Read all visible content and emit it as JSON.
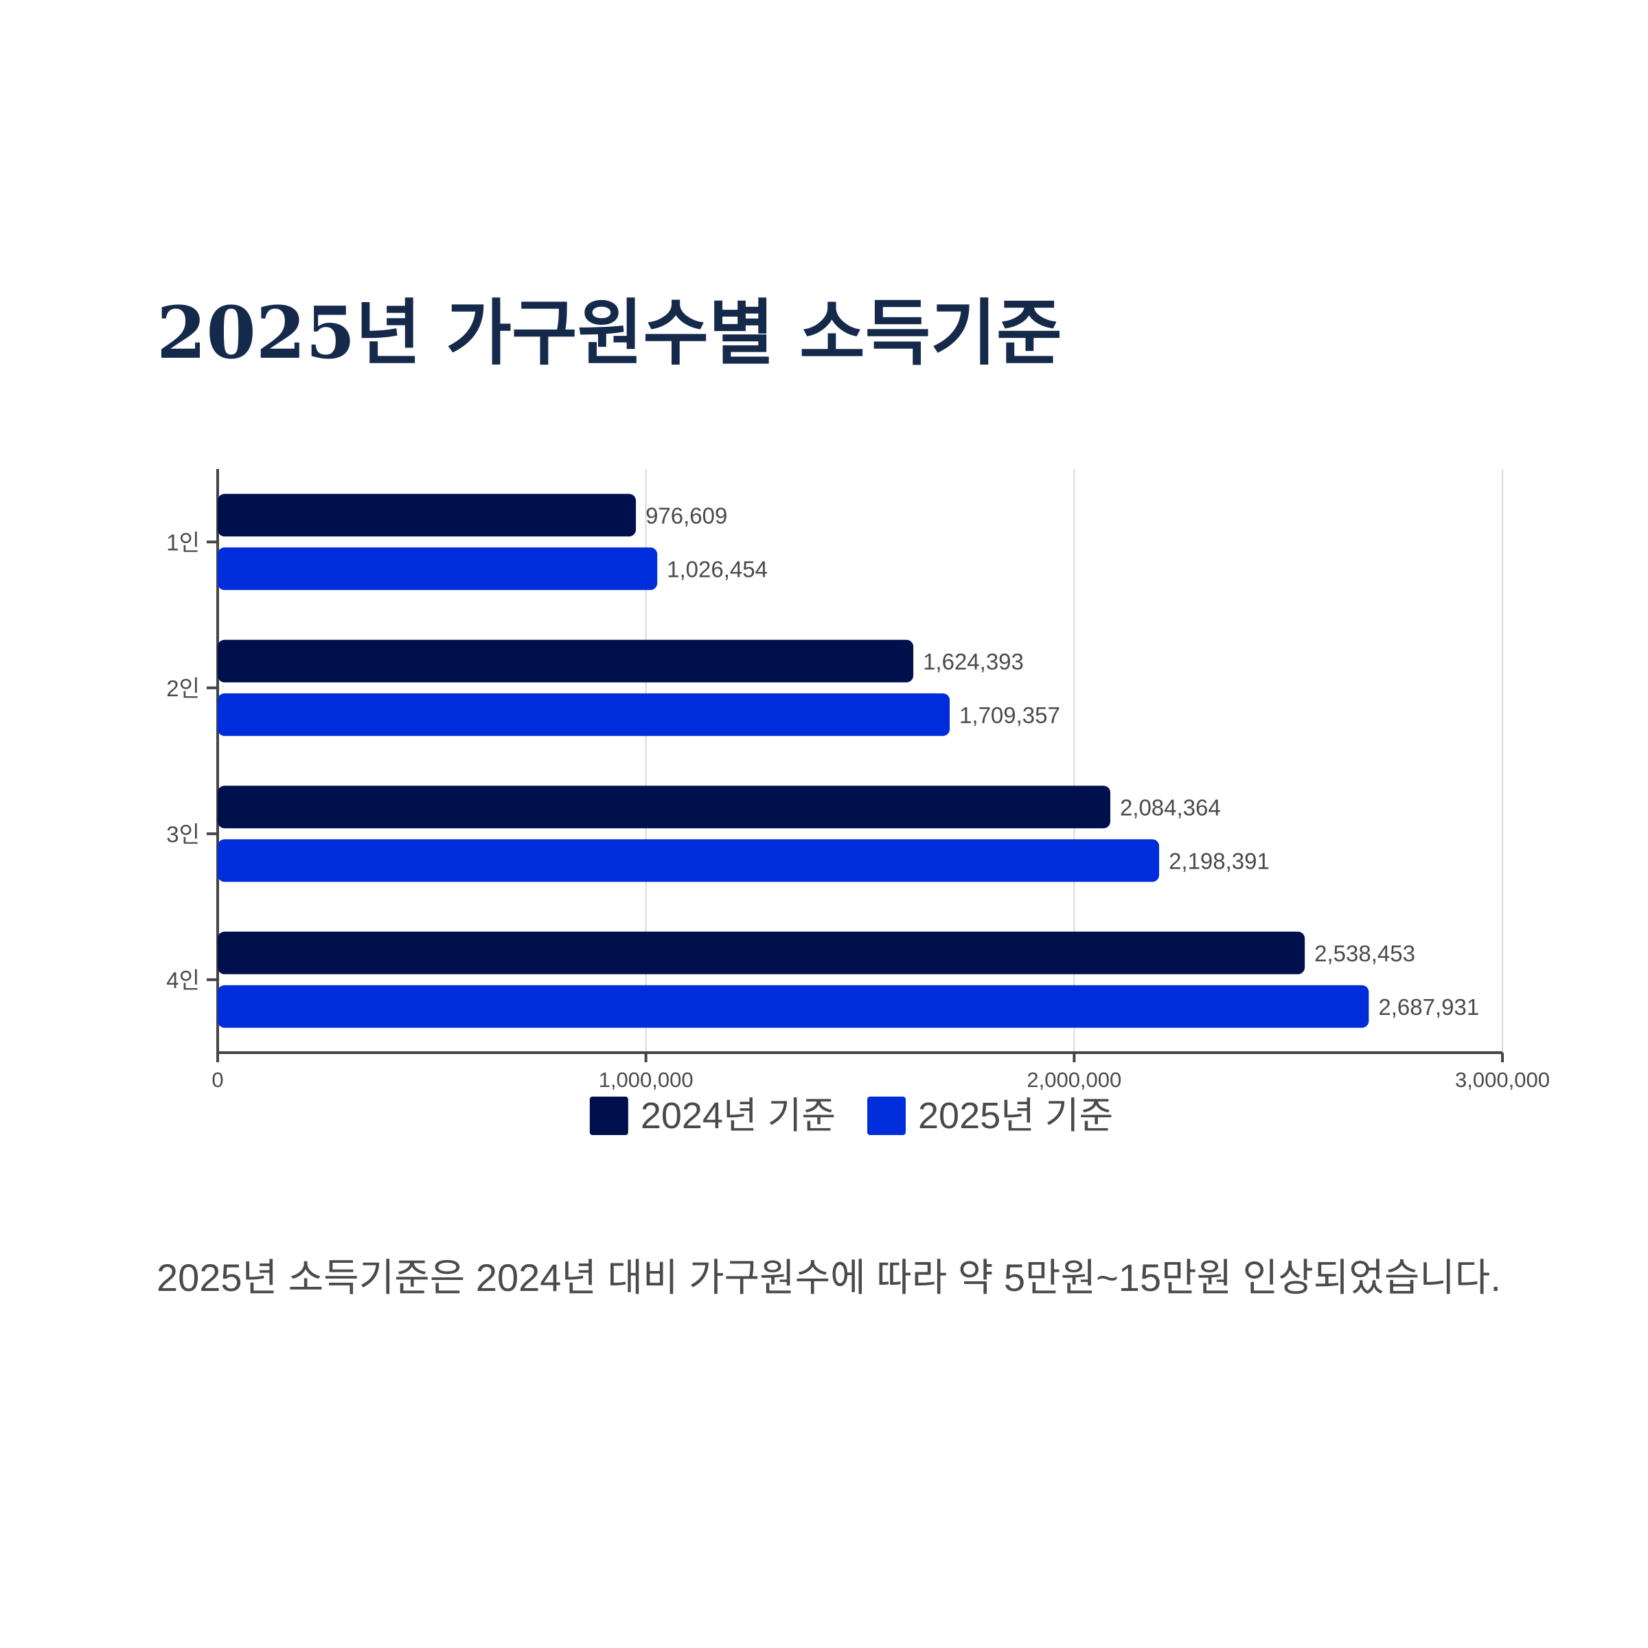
{
  "chart_data": {
    "type": "bar",
    "orientation": "horizontal",
    "title": "2025년 가구원수별 소득기준",
    "categories": [
      "1인",
      "2인",
      "3인",
      "4인"
    ],
    "series": [
      {
        "name": "2024년 기준",
        "color": "#00104d",
        "values": [
          976609,
          1624393,
          2084364,
          2538453
        ]
      },
      {
        "name": "2025년 기준",
        "color": "#002ddb",
        "values": [
          1026454,
          1709357,
          2198391,
          2687931
        ]
      }
    ],
    "xlim": [
      0,
      3000000
    ],
    "xticks": [
      0,
      1000000,
      2000000,
      3000000
    ],
    "grid": true,
    "legend_position": "bottom-center",
    "data_labels": true
  },
  "caption": "2025년 소득기준은 2024년 대비 가구원수에 따라 약 5만원~15만원 인상되었습니다."
}
